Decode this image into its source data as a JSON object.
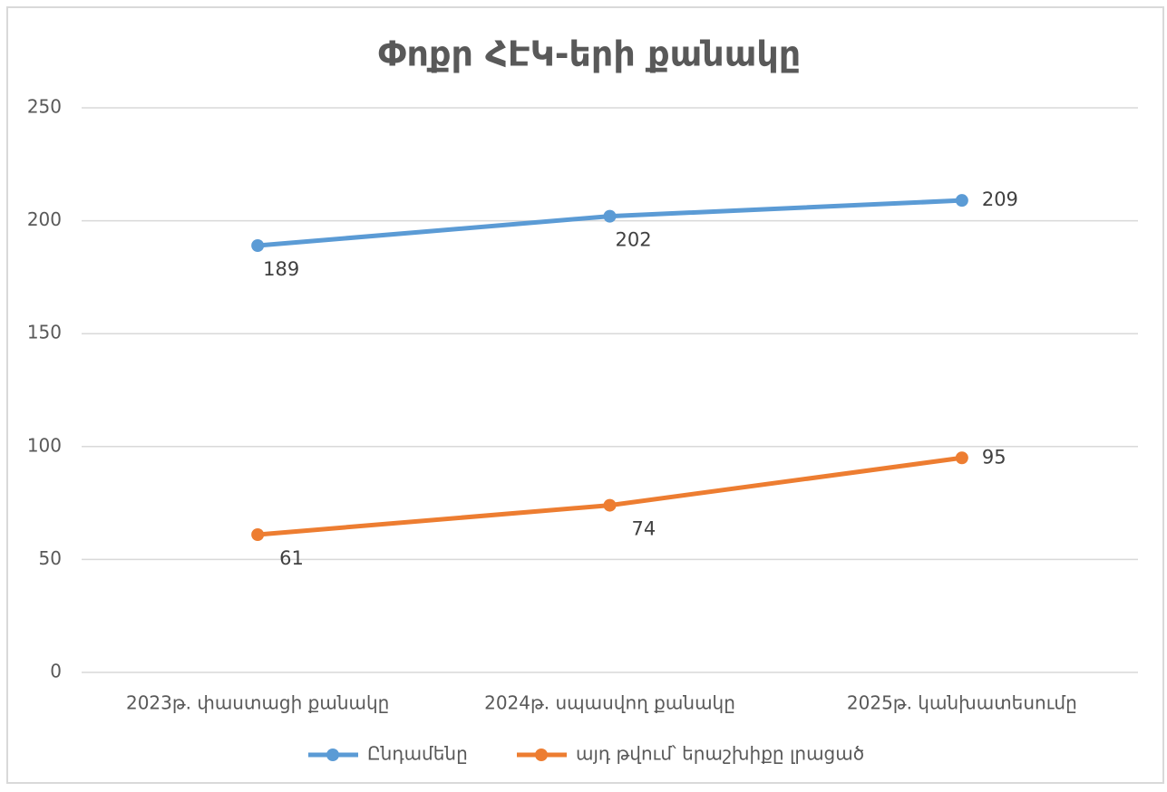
{
  "chart_data": {
    "type": "line",
    "title": "Փոքր ՀԷԿ-երի քանակը",
    "categories": [
      "2023թ. փաստացի քանակը",
      "2024թ. սպասվող քանակը",
      "2025թ. կանխատեսումը"
    ],
    "series": [
      {
        "name": "Ընդամենը",
        "color": "#5b9bd5",
        "values": [
          189,
          202,
          209
        ]
      },
      {
        "name": "այդ թվում՝ երաշխիքը լրացած",
        "color": "#ed7d31",
        "values": [
          61,
          74,
          95
        ]
      }
    ],
    "ylim": [
      0,
      250
    ],
    "yticks": [
      0,
      50,
      100,
      150,
      200,
      250
    ],
    "grid": true,
    "legend": "bottom"
  }
}
